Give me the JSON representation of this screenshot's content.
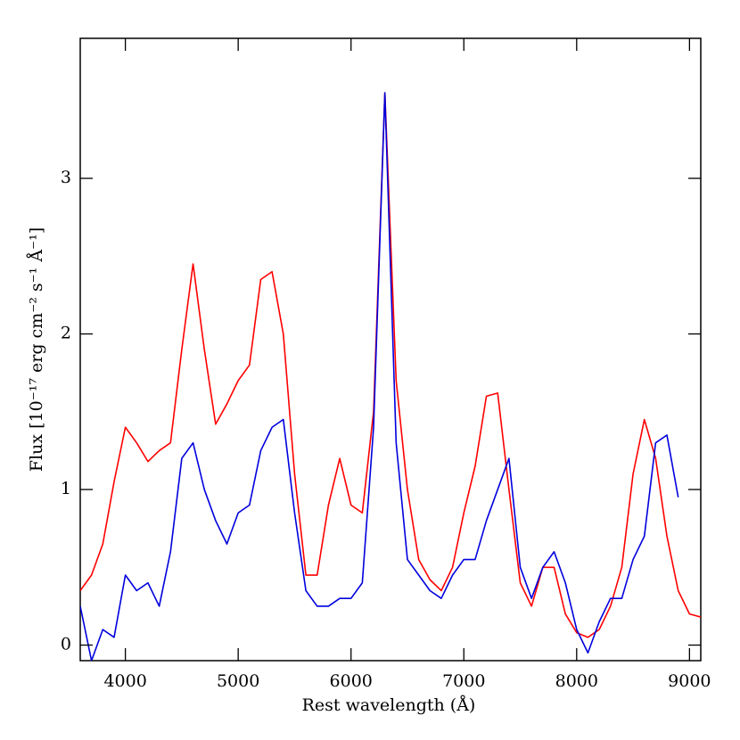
{
  "chart_data": {
    "type": "line",
    "x_label": "Rest wavelength (Å)",
    "y_label": "Flux [10⁻¹⁷ erg cm⁻² s⁻¹ Å⁻¹]",
    "x": [
      3600,
      3700,
      3800,
      3900,
      4000,
      4100,
      4200,
      4300,
      4400,
      4500,
      4600,
      4700,
      4800,
      4900,
      5000,
      5100,
      5200,
      5300,
      5400,
      5500,
      5600,
      5700,
      5800,
      5900,
      6000,
      6100,
      6200,
      6300,
      6400,
      6500,
      6600,
      6700,
      6800,
      6900,
      7000,
      7100,
      7200,
      7300,
      7400,
      7500,
      7600,
      7700,
      7800,
      7900,
      8000,
      8100,
      8200,
      8300,
      8400,
      8500,
      8600,
      8700,
      8800,
      8900,
      9000,
      9100
    ],
    "series": [
      {
        "color": "#ff0000",
        "values": [
          0.35,
          0.45,
          0.65,
          1.05,
          1.4,
          1.3,
          1.18,
          1.25,
          1.3,
          1.9,
          2.45,
          1.9,
          1.42,
          1.55,
          1.7,
          1.8,
          2.35,
          2.4,
          2.0,
          1.1,
          0.45,
          0.45,
          0.9,
          1.2,
          0.9,
          0.85,
          1.5,
          3.55,
          1.7,
          1.0,
          0.55,
          0.42,
          0.35,
          0.5,
          0.85,
          1.15,
          1.6,
          1.62,
          1.0,
          0.4,
          0.25,
          0.5,
          0.5,
          0.2,
          0.08,
          0.05,
          0.1,
          0.25,
          0.5,
          1.1,
          1.45,
          1.2,
          0.7,
          0.35,
          0.2,
          0.18
        ]
      },
      {
        "color": "#0000dd",
        "values": [
          0.25,
          -0.1,
          0.1,
          0.05,
          0.45,
          0.35,
          0.4,
          0.25,
          0.6,
          1.2,
          1.3,
          1.0,
          0.8,
          0.65,
          0.85,
          0.9,
          1.25,
          1.4,
          1.45,
          0.85,
          0.35,
          0.25,
          0.25,
          0.3,
          0.3,
          0.4,
          1.4,
          3.55,
          1.3,
          0.55,
          0.45,
          0.35,
          0.3,
          0.45,
          0.55,
          0.55,
          0.8,
          1.0,
          1.2,
          0.5,
          0.3,
          0.5,
          0.6,
          0.4,
          0.1,
          -0.05,
          0.15,
          0.3,
          0.3,
          0.55,
          0.7,
          1.3,
          1.35,
          0.95,
          null,
          null
        ]
      }
    ],
    "xlim": [
      3600,
      9100
    ],
    "ylim": [
      -0.1,
      3.9
    ],
    "xticks": [
      4000,
      5000,
      6000,
      7000,
      8000,
      9000
    ],
    "yticks": [
      0,
      1,
      2,
      3
    ]
  }
}
